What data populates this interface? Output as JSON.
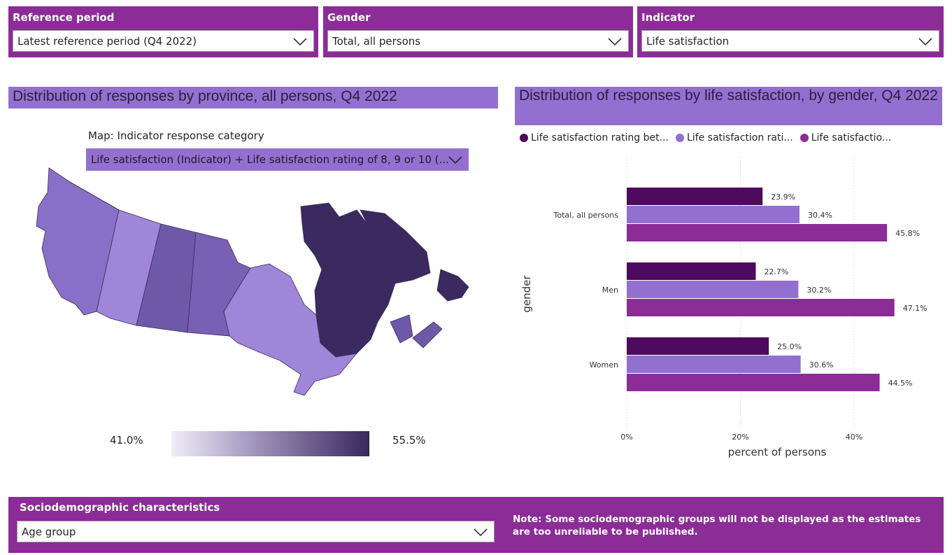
{
  "filters": [
    {
      "label": "Reference period",
      "value": "Latest reference period (Q4 2022)"
    },
    {
      "label": "Gender",
      "value": "Total, all persons"
    },
    {
      "label": "Indicator",
      "value": "Life satisfaction"
    }
  ],
  "map_panel": {
    "title": "Distribution of responses by province, all persons, Q4 2022",
    "category_label": "Map: Indicator response category",
    "category_value": "Life satisfaction (Indicator) + Life satisfaction rating of 8, 9 or 10 (...",
    "legend_min": "41.0%",
    "legend_max": "55.5%",
    "colors": {
      "light": "#9f86d8",
      "mid": "#8a6fc8",
      "dark": "#6e58a8",
      "darkest": "#3b2a5f"
    }
  },
  "chart_panel": {
    "title": "Distribution of responses by life satisfaction, by gender, Q4 2022",
    "legend": [
      {
        "label": "Life satisfaction rating bet...",
        "color": "#4d0a5e"
      },
      {
        "label": "Life satisfaction rati...",
        "color": "#9370d0"
      },
      {
        "label": "Life satisfactio...",
        "color": "#8b2c97"
      }
    ]
  },
  "chart_data": {
    "type": "bar",
    "orientation": "horizontal",
    "categories": [
      "Total, all persons",
      "Men",
      "Women"
    ],
    "series": [
      {
        "name": "Life satisfaction rating bet...",
        "color": "#4d0a5e",
        "values": [
          23.9,
          22.7,
          25.0
        ]
      },
      {
        "name": "Life satisfaction rati...",
        "color": "#9370d0",
        "values": [
          30.4,
          30.2,
          30.6
        ]
      },
      {
        "name": "Life satisfactio...",
        "color": "#8b2c97",
        "values": [
          45.8,
          47.1,
          44.5
        ]
      }
    ],
    "data_labels": [
      [
        "23.9%",
        "22.7%",
        "25.0%"
      ],
      [
        "30.4%",
        "30.2%",
        "30.6%"
      ],
      [
        "45.8%",
        "47.1%",
        "44.5%"
      ]
    ],
    "xlabel": "percent of persons",
    "ylabel": "gender",
    "xlim": [
      0,
      50
    ],
    "xticks": [
      0,
      20,
      40
    ],
    "xtick_labels": [
      "0%",
      "20%",
      "40%"
    ],
    "grid": "vertical dotted"
  },
  "bottom": {
    "label": "Sociodemographic characteristics",
    "value": "Age group",
    "note": "Note: Some sociodemographic groups will not be displayed as the estimates are too unreliable to be published."
  }
}
